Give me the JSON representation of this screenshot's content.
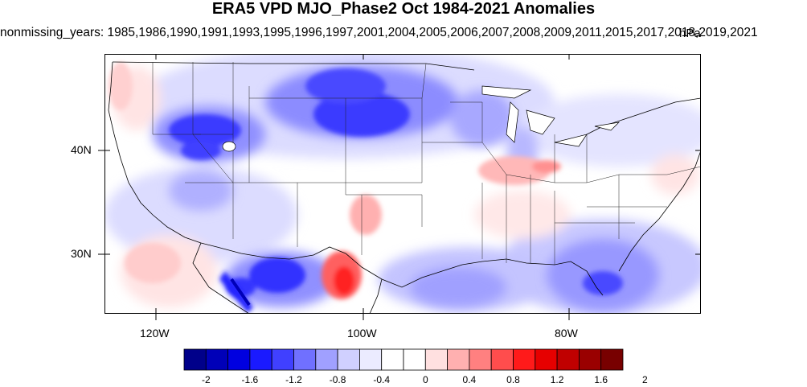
{
  "title": "ERA5 VPD MJO_Phase2 Oct 1984-2021 Anomalies",
  "subtitle": "nonmissing_years: 1985,1986,1990,1991,1993,1995,1996,1997,2001,2004,2005,2006,2007,2008,2009,2011,2015,2017,2018,2019,2021",
  "unit": "hPa",
  "axes": {
    "lon_labels": [
      "120W",
      "100W",
      "80W"
    ],
    "lat_labels": [
      "40N",
      "30N"
    ]
  },
  "colorbar": {
    "labels": [
      "-2",
      "-1.6",
      "-1.2",
      "-0.8",
      "-0.4",
      "0",
      "0.4",
      "0.8",
      "1.2",
      "1.6",
      "2"
    ],
    "colors": [
      "#00008a",
      "#0000b8",
      "#0000e0",
      "#1a1aff",
      "#4040ff",
      "#7070ff",
      "#a0a0ff",
      "#d0d0ff",
      "#ebebff",
      "#ffffff",
      "#ffffff",
      "#ffe0e0",
      "#ffb0b0",
      "#ff8080",
      "#ff4d4d",
      "#ff1a1a",
      "#e60000",
      "#c00000",
      "#9a0000",
      "#780000"
    ]
  }
}
